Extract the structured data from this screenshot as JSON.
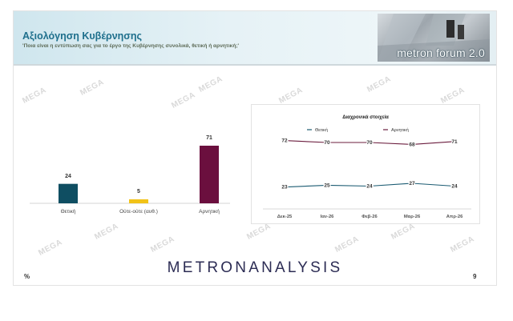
{
  "header": {
    "title": "Αξιολόγηση Κυβέρνησης",
    "subtitle": "'Ποια είναι η εντύπωση σας για το έργο της Κυβέρνησης συνολικά, θετική ή αρνητική;'",
    "logo_text": "metron forum 2.0"
  },
  "watermark_text": "MEGA",
  "footer": {
    "brand": "METRONANALYSIS",
    "unit": "%",
    "page_number": "9"
  },
  "colors": {
    "header_title": "#1e6f8c",
    "positive": "#0f4e62",
    "neutral": "#f2c318",
    "negative": "#6b0f3e",
    "line_positive": "#1b5b72",
    "line_negative": "#6b1d3e"
  },
  "chart_data": [
    {
      "type": "bar",
      "categories": [
        "Θετική",
        "Ούτε-ούτε (αυθ.)",
        "Αρνητική"
      ],
      "values": [
        24,
        5,
        71
      ],
      "ylim": [
        0,
        80
      ]
    },
    {
      "type": "line",
      "title": "Διαχρονικά στοιχεία",
      "x": [
        "Δεκ-25",
        "Ιαν-26",
        "Φεβ-26",
        "Μαρ-26",
        "Απρ-26"
      ],
      "series": [
        {
          "name": "Θετική",
          "values": [
            23,
            25,
            24,
            27,
            24
          ]
        },
        {
          "name": "Αρνητική",
          "values": [
            72,
            70,
            70,
            68,
            71
          ]
        }
      ],
      "ylim": [
        0,
        90
      ],
      "legend": "top"
    }
  ]
}
